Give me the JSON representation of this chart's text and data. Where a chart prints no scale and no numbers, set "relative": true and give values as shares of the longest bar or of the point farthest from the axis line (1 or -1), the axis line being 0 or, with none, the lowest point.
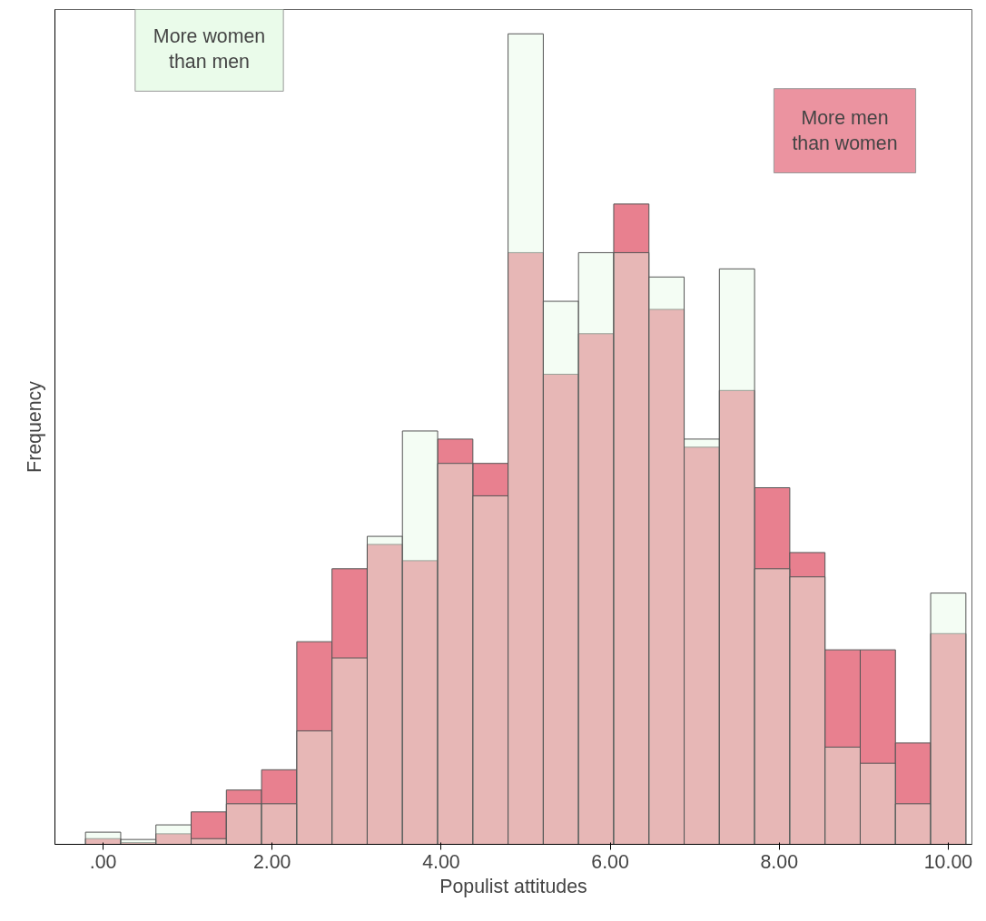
{
  "chart_data": {
    "type": "bar",
    "xlabel": "Populist attitudes",
    "ylabel": "Frequency",
    "relative": true,
    "x": [
      0,
      0.4167,
      0.8333,
      1.25,
      1.6667,
      2.0833,
      2.5,
      2.9167,
      3.3333,
      3.75,
      4.1667,
      4.5833,
      5,
      5.4167,
      5.8333,
      6.25,
      6.6667,
      7.0833,
      7.5,
      7.9167,
      8.3333,
      8.75,
      9.1667,
      9.5833,
      10
    ],
    "series": [
      {
        "color": "#e6fae6",
        "values": [
          0.015,
          0.006,
          0.024,
          0.007,
          0.05,
          0.05,
          0.14,
          0.23,
          0.38,
          0.51,
          0.47,
          0.43,
          1.0,
          0.67,
          0.73,
          0.73,
          0.7,
          0.5,
          0.71,
          0.34,
          0.33,
          0.12,
          0.1,
          0.05,
          0.31
        ]
      },
      {
        "color": "#e8808f",
        "values": [
          0.007,
          0.002,
          0.013,
          0.04,
          0.067,
          0.092,
          0.25,
          0.34,
          0.37,
          0.35,
          0.5,
          0.47,
          0.73,
          0.58,
          0.63,
          0.79,
          0.66,
          0.49,
          0.56,
          0.44,
          0.36,
          0.24,
          0.24,
          0.125,
          0.26
        ]
      }
    ],
    "xlim": [
      -0.57,
      10.28
    ],
    "xticks": [
      {
        "value": 0,
        "label": ".00"
      },
      {
        "value": 2,
        "label": "2.00"
      },
      {
        "value": 4,
        "label": "4.00"
      },
      {
        "value": 6,
        "label": "6.00"
      },
      {
        "value": 8,
        "label": "8.00"
      },
      {
        "value": 10,
        "label": "10.00"
      }
    ],
    "tick_labels": "x",
    "grid": false,
    "annotations": [
      "More women\nthan men",
      "More men\nthan women"
    ]
  }
}
